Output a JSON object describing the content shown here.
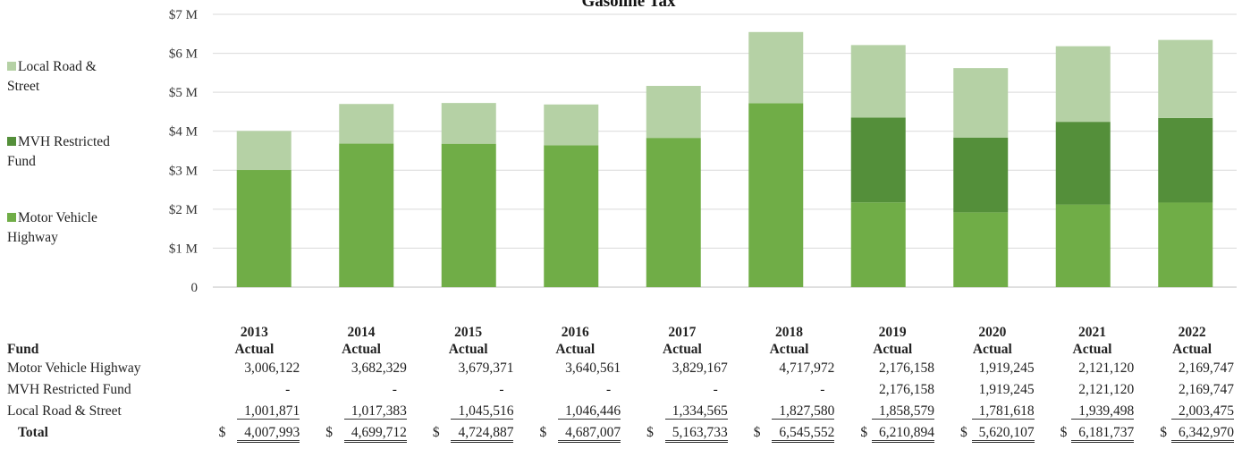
{
  "chart_data": {
    "type": "bar",
    "stacked": true,
    "title": "Gasoline Tax",
    "categories": [
      "2013",
      "2014",
      "2015",
      "2016",
      "2017",
      "2018",
      "2019",
      "2020",
      "2021",
      "2022"
    ],
    "series": [
      {
        "name": "Motor Vehicle Highway",
        "color": "#70ad47",
        "values": [
          3006122,
          3682329,
          3679371,
          3640561,
          3829167,
          4717972,
          2176158,
          1919245,
          2121120,
          2169747
        ]
      },
      {
        "name": "MVH Restricted Fund",
        "color": "#548f3a",
        "values": [
          0,
          0,
          0,
          0,
          0,
          0,
          2176158,
          1919245,
          2121120,
          2169747
        ]
      },
      {
        "name": "Local Road & Street",
        "color": "#b5d1a5",
        "values": [
          1001871,
          1017383,
          1045516,
          1046446,
          1334565,
          1827580,
          1858579,
          1781618,
          1939498,
          2003475
        ]
      }
    ],
    "ylim": [
      0,
      7000000
    ],
    "yticks": [
      "0",
      "$1 M",
      "$2 M",
      "$3 M",
      "$4 M",
      "$5 M",
      "$6 M",
      "$7 M"
    ],
    "grid": true,
    "legend_position": "left"
  },
  "legend": [
    {
      "name": "Local Road & Street",
      "line1": "Local Road &",
      "line2": "Street",
      "color": "#b5d1a5"
    },
    {
      "name": "MVH Restricted Fund",
      "line1": "MVH Restricted",
      "line2": "Fund",
      "color": "#548f3a"
    },
    {
      "name": "Motor Vehicle Highway",
      "line1": "Motor Vehicle",
      "line2": "Highway",
      "color": "#70ad47"
    }
  ],
  "table": {
    "fund_header": "Fund",
    "year_headers": [
      {
        "year": "2013",
        "sub": "Actual"
      },
      {
        "year": "2014",
        "sub": "Actual"
      },
      {
        "year": "2015",
        "sub": "Actual"
      },
      {
        "year": "2016",
        "sub": "Actual"
      },
      {
        "year": "2017",
        "sub": "Actual"
      },
      {
        "year": "2018",
        "sub": "Actual"
      },
      {
        "year": "2019",
        "sub": "Actual"
      },
      {
        "year": "2020",
        "sub": "Actual"
      },
      {
        "year": "2021",
        "sub": "Actual"
      },
      {
        "year": "2022",
        "sub": "Actual"
      }
    ],
    "rows": [
      {
        "label": "Motor Vehicle Highway",
        "cells": [
          "3,006,122",
          "3,682,329",
          "3,679,371",
          "3,640,561",
          "3,829,167",
          "4,717,972",
          "2,176,158",
          "1,919,245",
          "2,121,120",
          "2,169,747"
        ]
      },
      {
        "label": "MVH Restricted Fund",
        "cells": [
          "-",
          "-",
          "-",
          "-",
          "-",
          "-",
          "2,176,158",
          "1,919,245",
          "2,121,120",
          "2,169,747"
        ]
      },
      {
        "label": "Local Road & Street",
        "cells": [
          "1,001,871",
          "1,017,383",
          "1,045,516",
          "1,046,446",
          "1,334,565",
          "1,827,580",
          "1,858,579",
          "1,781,618",
          "1,939,498",
          "2,003,475"
        ]
      }
    ],
    "total": {
      "label": "Total",
      "currency": "$",
      "cells": [
        "4,007,993",
        "4,699,712",
        "4,724,887",
        "4,687,007",
        "5,163,733",
        "6,545,552",
        "6,210,894",
        "5,620,107",
        "6,181,737",
        "6,342,970"
      ]
    }
  }
}
